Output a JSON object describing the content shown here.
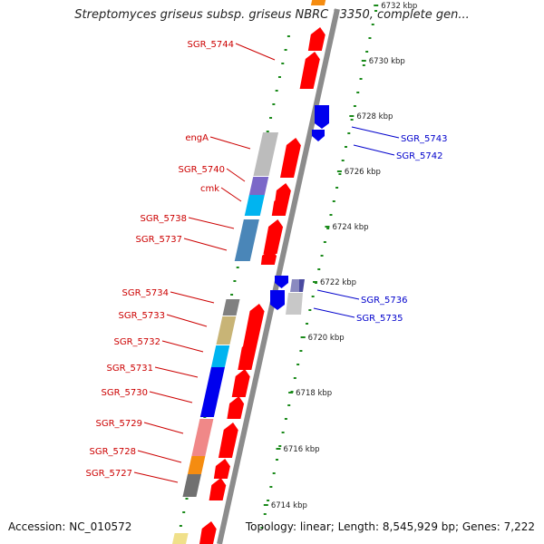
{
  "title": "Streptomyces griseus subsp. griseus NBRC 13350, complete gen...",
  "accession": "Accession: NC_010572",
  "topology": "Topology: linear; Length: 8,545,929 bp; Genes: 7,222",
  "colors": {
    "backbone": "#8c8c8c",
    "forward_arrow": "#ff0000",
    "reverse_arrow": "#0000ee",
    "tick": "#1a8a1a",
    "label_forward": "#cc0000",
    "label_reverse": "#0000cc"
  },
  "kbp_ticks": [
    "6714 kbp",
    "6716 kbp",
    "6718 kbp",
    "6720 kbp",
    "6722 kbp",
    "6724 kbp",
    "6726 kbp",
    "6728 kbp",
    "6730 kbp",
    "6732 kbp"
  ],
  "forward_labels": [
    "SGR_5744",
    "engA",
    "SGR_5740",
    "cmk",
    "SGR_5738",
    "SGR_5737",
    "SGR_5734",
    "SGR_5733",
    "SGR_5732",
    "SGR_5731",
    "SGR_5730",
    "SGR_5729",
    "SGR_5728",
    "SGR_5727"
  ],
  "reverse_labels": [
    "SGR_5743",
    "SGR_5742",
    "SGR_5736",
    "SGR_5735"
  ]
}
